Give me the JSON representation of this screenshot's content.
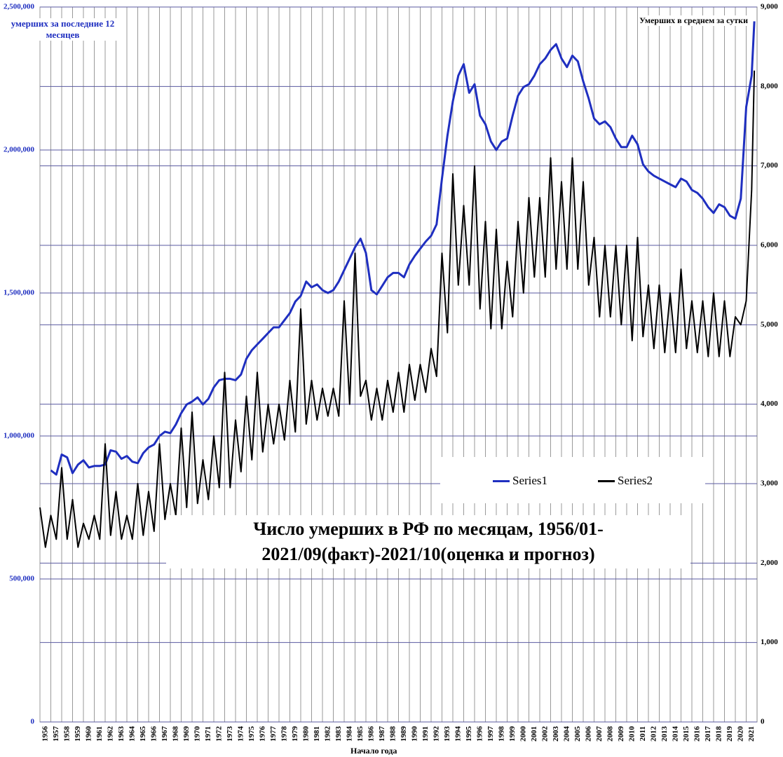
{
  "chart_data": {
    "type": "line",
    "title": "Число умерших в РФ по месяцам, 1956/01-2021/09(факт)-2021/10(оценка и прогноз)",
    "y_label": "умерших за последние 12 месяцев",
    "y2_label": "Умерших в среднем за сутки",
    "x_label": "Начало года",
    "grid": true,
    "xlim": [
      1956,
      2022
    ],
    "xticks": [
      1956,
      1957,
      1958,
      1959,
      1960,
      1961,
      1962,
      1963,
      1964,
      1965,
      1966,
      1967,
      1968,
      1969,
      1970,
      1971,
      1972,
      1973,
      1974,
      1975,
      1976,
      1977,
      1978,
      1979,
      1980,
      1981,
      1982,
      1983,
      1984,
      1985,
      1986,
      1987,
      1988,
      1989,
      1990,
      1991,
      1992,
      1993,
      1994,
      1995,
      1996,
      1997,
      1998,
      1999,
      2000,
      2001,
      2002,
      2003,
      2004,
      2005,
      2006,
      2007,
      2008,
      2009,
      2010,
      2011,
      2012,
      2013,
      2014,
      2015,
      2016,
      2017,
      2018,
      2019,
      2020,
      2021
    ],
    "ylim": [
      0,
      2500000
    ],
    "yticks": [
      {
        "value": 0,
        "label": "0"
      },
      {
        "value": 500000,
        "label": "500,000"
      },
      {
        "value": 1000000,
        "label": "1,000,000"
      },
      {
        "value": 1500000,
        "label": "1,500,000"
      },
      {
        "value": 2000000,
        "label": "2,000,000"
      },
      {
        "value": 2500000,
        "label": "2,500,000"
      }
    ],
    "y2lim": [
      0,
      9000
    ],
    "y2ticks": [
      0,
      {
        "value": 1000,
        "label": "1,000"
      },
      {
        "value": 2000,
        "label": "2,000"
      },
      {
        "value": 3000,
        "label": "3,000"
      },
      {
        "value": 4000,
        "label": "4,000"
      },
      {
        "value": 5000,
        "label": "5,000"
      },
      {
        "value": 6000,
        "label": "6,000"
      },
      {
        "value": 7000,
        "label": "7,000"
      },
      {
        "value": 8000,
        "label": "8,000"
      },
      {
        "value": 9000,
        "label": "9,000"
      }
    ],
    "x": [
      1956,
      1956.5,
      1957,
      1957.5,
      1958,
      1958.5,
      1959,
      1959.5,
      1960,
      1960.5,
      1961,
      1961.5,
      1962,
      1962.5,
      1963,
      1963.5,
      1964,
      1964.5,
      1965,
      1965.5,
      1966,
      1966.5,
      1967,
      1967.5,
      1968,
      1968.5,
      1969,
      1969.5,
      1970,
      1970.5,
      1971,
      1971.5,
      1972,
      1972.5,
      1973,
      1973.5,
      1974,
      1974.5,
      1975,
      1975.5,
      1976,
      1976.5,
      1977,
      1977.5,
      1978,
      1978.5,
      1979,
      1979.5,
      1980,
      1980.5,
      1981,
      1981.5,
      1982,
      1982.5,
      1983,
      1983.5,
      1984,
      1984.5,
      1985,
      1985.5,
      1986,
      1986.5,
      1987,
      1987.5,
      1988,
      1988.5,
      1989,
      1989.5,
      1990,
      1990.5,
      1991,
      1991.5,
      1992,
      1992.5,
      1993,
      1993.5,
      1994,
      1994.5,
      1995,
      1995.5,
      1996,
      1996.5,
      1997,
      1997.5,
      1998,
      1998.5,
      1999,
      1999.5,
      2000,
      2000.5,
      2001,
      2001.5,
      2002,
      2002.5,
      2003,
      2003.5,
      2004,
      2004.5,
      2005,
      2005.5,
      2006,
      2006.5,
      2007,
      2007.5,
      2008,
      2008.5,
      2009,
      2009.5,
      2010,
      2010.5,
      2011,
      2011.5,
      2012,
      2012.5,
      2013,
      2013.5,
      2014,
      2014.5,
      2015,
      2015.5,
      2016,
      2016.5,
      2017,
      2017.5,
      2018,
      2018.5,
      2019,
      2019.5,
      2020,
      2020.5,
      2021,
      2021.5,
      2021.75
    ],
    "series": [
      {
        "name": "Series1",
        "color": "#1f2fc0",
        "axis": "y",
        "values": [
          null,
          null,
          880000,
          865000,
          935000,
          925000,
          870000,
          900000,
          915000,
          890000,
          895000,
          895000,
          900000,
          950000,
          945000,
          920000,
          930000,
          910000,
          905000,
          940000,
          960000,
          970000,
          1000000,
          1015000,
          1010000,
          1040000,
          1080000,
          1110000,
          1120000,
          1135000,
          1110000,
          1130000,
          1170000,
          1195000,
          1200000,
          1200000,
          1195000,
          1215000,
          1270000,
          1300000,
          1320000,
          1340000,
          1360000,
          1380000,
          1380000,
          1405000,
          1430000,
          1470000,
          1490000,
          1540000,
          1520000,
          1530000,
          1510000,
          1500000,
          1510000,
          1540000,
          1580000,
          1620000,
          1660000,
          1690000,
          1640000,
          1510000,
          1495000,
          1525000,
          1555000,
          1570000,
          1570000,
          1555000,
          1600000,
          1630000,
          1655000,
          1680000,
          1700000,
          1740000,
          1900000,
          2050000,
          2170000,
          2260000,
          2300000,
          2200000,
          2230000,
          2120000,
          2090000,
          2030000,
          2000000,
          2030000,
          2040000,
          2120000,
          2190000,
          2220000,
          2230000,
          2260000,
          2300000,
          2320000,
          2350000,
          2370000,
          2320000,
          2290000,
          2330000,
          2310000,
          2240000,
          2180000,
          2110000,
          2090000,
          2100000,
          2080000,
          2040000,
          2010000,
          2010000,
          2050000,
          2020000,
          1950000,
          1925000,
          1910000,
          1900000,
          1890000,
          1880000,
          1870000,
          1900000,
          1890000,
          1860000,
          1850000,
          1830000,
          1800000,
          1780000,
          1810000,
          1800000,
          1770000,
          1760000,
          1830000,
          2150000,
          2260000,
          2450000
        ]
      },
      {
        "name": "Series2",
        "color": "#000000",
        "axis": "y2",
        "values": [
          2700,
          2200,
          2600,
          2300,
          3200,
          2300,
          2800,
          2200,
          2500,
          2300,
          2600,
          2300,
          3500,
          2350,
          2900,
          2300,
          2600,
          2300,
          3000,
          2350,
          2900,
          2400,
          3500,
          2550,
          3000,
          2600,
          3700,
          2700,
          3900,
          2750,
          3300,
          2800,
          3600,
          2950,
          4400,
          2950,
          3800,
          3150,
          4100,
          3300,
          4400,
          3400,
          4000,
          3500,
          4000,
          3550,
          4300,
          3650,
          5200,
          3750,
          4300,
          3800,
          4200,
          3850,
          4200,
          3850,
          5300,
          4000,
          5900,
          4100,
          4300,
          3800,
          4200,
          3800,
          4300,
          3900,
          4400,
          3900,
          4500,
          4050,
          4500,
          4150,
          4700,
          4350,
          5900,
          4900,
          6900,
          5500,
          6500,
          5500,
          7000,
          5200,
          6300,
          4950,
          6200,
          4950,
          5800,
          5100,
          6300,
          5400,
          6600,
          5600,
          6600,
          5600,
          7100,
          5700,
          6800,
          5700,
          7100,
          5700,
          6800,
          5500,
          6100,
          5100,
          6000,
          5100,
          6000,
          5000,
          6000,
          4800,
          6100,
          4850,
          5500,
          4700,
          5500,
          4650,
          5400,
          4650,
          5700,
          4700,
          5300,
          4650,
          5300,
          4600,
          5400,
          4600,
          5300,
          4600,
          5100,
          5000,
          5300,
          6700,
          8200
        ]
      }
    ]
  }
}
